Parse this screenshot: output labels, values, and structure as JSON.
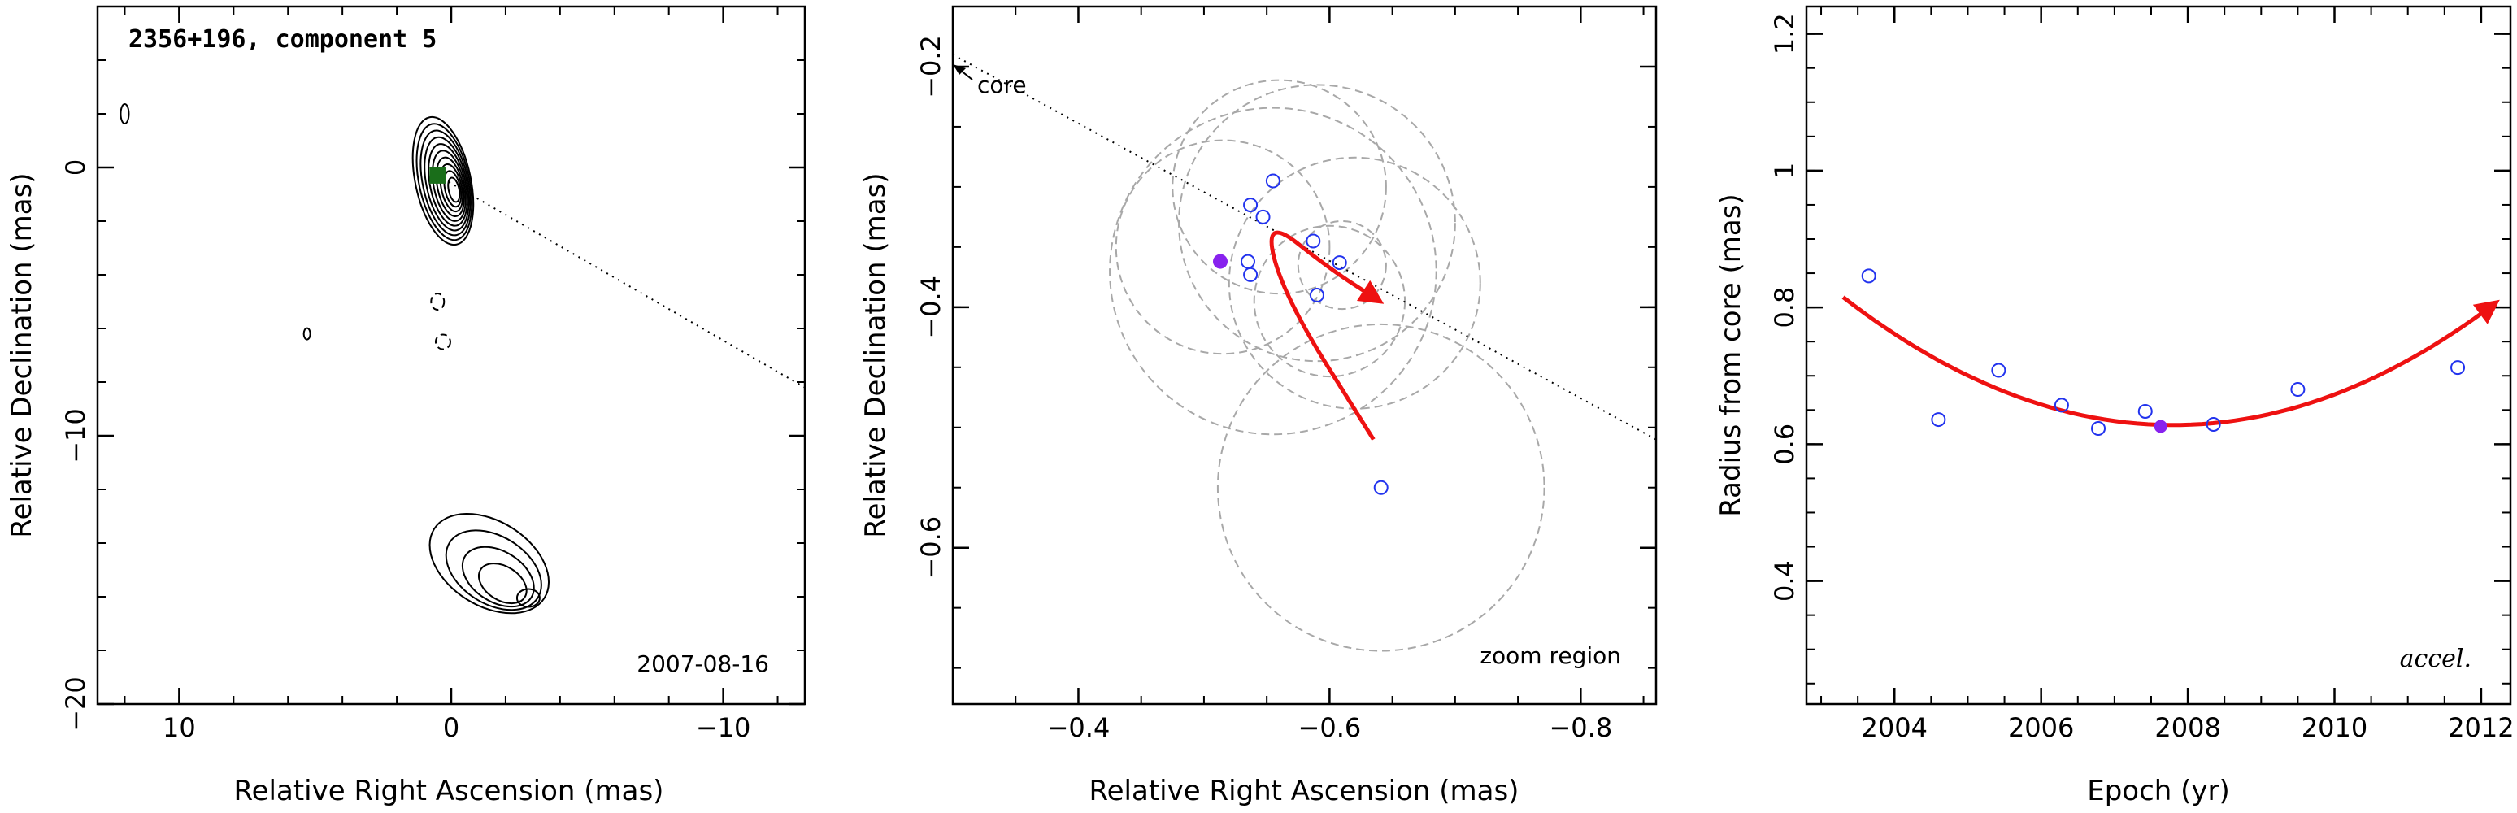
{
  "chart_data": [
    {
      "type": "contour",
      "title": "2356+196, component 5",
      "xlabel": "Relative Right Ascension (mas)",
      "ylabel": "Relative Declination (mas)",
      "xlim": [
        13,
        -13
      ],
      "ylim": [
        -20,
        6
      ],
      "xticks": [
        10,
        0,
        -10
      ],
      "yticks": [
        0,
        -10,
        -20
      ],
      "epoch_label": "2007-08-16",
      "component_marker": {
        "x": 0.5,
        "y": -0.3,
        "color": "#1a6e1a"
      },
      "jet_line": {
        "from": [
          0.5,
          -0.3
        ],
        "to": [
          -13,
          -8.2
        ]
      },
      "features": [
        {
          "name": "core",
          "x": 0.3,
          "y": -0.5
        },
        {
          "name": "southern-knot",
          "x": -2.0,
          "y": -15.5
        },
        {
          "name": "west-blob-1",
          "x": 12.0,
          "y": 2.0
        },
        {
          "name": "west-blob-2",
          "x": 5.3,
          "y": -6.2
        },
        {
          "name": "mid-blob-1",
          "x": 0.5,
          "y": -5.0
        },
        {
          "name": "mid-blob-2",
          "x": 0.3,
          "y": -6.5
        }
      ]
    },
    {
      "type": "scatter",
      "xlabel": "Relative Right Ascension (mas)",
      "ylabel": "Relative Declination (mas)",
      "xlim": [
        -0.3,
        -0.86
      ],
      "ylim": [
        -0.73,
        -0.15
      ],
      "xticks": [
        -0.4,
        -0.6,
        -0.8
      ],
      "yticks": [
        -0.2,
        -0.4,
        -0.6
      ],
      "core_label": "core",
      "zoom_label": "zoom region",
      "points": [
        {
          "x": -0.537,
          "y": -0.315
        },
        {
          "x": -0.555,
          "y": -0.295
        },
        {
          "x": -0.547,
          "y": -0.325
        },
        {
          "x": -0.587,
          "y": -0.345
        },
        {
          "x": -0.535,
          "y": -0.362
        },
        {
          "x": -0.537,
          "y": -0.373
        },
        {
          "x": -0.608,
          "y": -0.363
        },
        {
          "x": -0.59,
          "y": -0.39
        },
        {
          "x": -0.641,
          "y": -0.55
        }
      ],
      "highlight_point": {
        "x": -0.513,
        "y": -0.362
      },
      "error_circles": [
        {
          "x": -0.555,
          "y": -0.37,
          "r": 0.13
        },
        {
          "x": -0.59,
          "y": -0.33,
          "r": 0.11
        },
        {
          "x": -0.56,
          "y": -0.3,
          "r": 0.085
        },
        {
          "x": -0.515,
          "y": -0.35,
          "r": 0.085
        },
        {
          "x": -0.62,
          "y": -0.38,
          "r": 0.1
        },
        {
          "x": -0.6,
          "y": -0.395,
          "r": 0.06
        },
        {
          "x": -0.61,
          "y": -0.365,
          "r": 0.035
        },
        {
          "x": -0.641,
          "y": -0.55,
          "r": 0.13
        }
      ],
      "trajectory": [
        [
          -0.635,
          -0.51
        ],
        [
          -0.563,
          -0.39
        ],
        [
          -0.548,
          -0.325
        ],
        [
          -0.6,
          -0.368
        ],
        [
          -0.64,
          -0.395
        ]
      ]
    },
    {
      "type": "scatter",
      "xlabel": "Epoch (yr)",
      "ylabel": "Radius from core (mas)",
      "xlim": [
        2002.8,
        2012.4
      ],
      "ylim": [
        0.22,
        1.24
      ],
      "xticks": [
        2004,
        2006,
        2008,
        2010,
        2012
      ],
      "yticks": [
        0.4,
        0.6,
        0.8,
        1,
        1.2
      ],
      "annotation": "accel.",
      "points": [
        {
          "x": 2003.65,
          "y": 0.846
        },
        {
          "x": 2004.6,
          "y": 0.636
        },
        {
          "x": 2005.42,
          "y": 0.708
        },
        {
          "x": 2006.28,
          "y": 0.657
        },
        {
          "x": 2006.78,
          "y": 0.623
        },
        {
          "x": 2007.42,
          "y": 0.648
        },
        {
          "x": 2008.35,
          "y": 0.629
        },
        {
          "x": 2009.5,
          "y": 0.68
        },
        {
          "x": 2011.68,
          "y": 0.712
        }
      ],
      "highlight_point": {
        "x": 2007.63,
        "y": 0.626
      },
      "fit": {
        "x_start": 2003.3,
        "x_end": 2012.2,
        "x_min": 2007.8,
        "y_min": 0.628,
        "y_start": 0.815
      }
    }
  ]
}
